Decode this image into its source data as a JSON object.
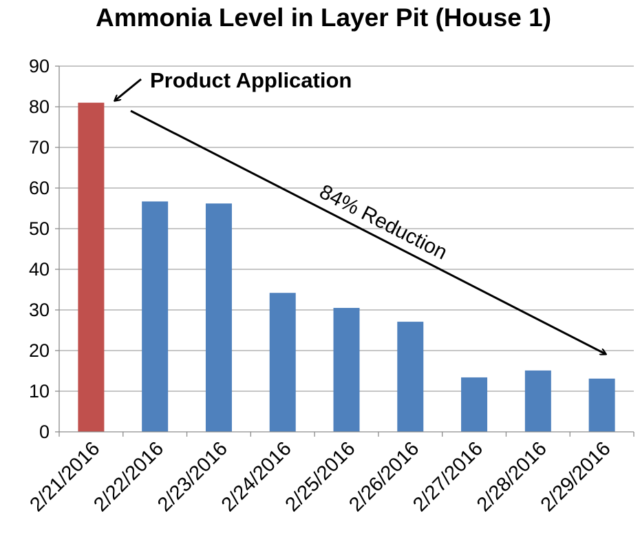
{
  "chart_data": {
    "type": "bar",
    "title": "Ammonia Level in Layer Pit (House 1)",
    "xlabel": "",
    "ylabel": "",
    "categories": [
      "2/21/2016",
      "2/22/2016",
      "2/23/2016",
      "2/24/2016",
      "2/25/2016",
      "2/26/2016",
      "2/27/2016",
      "2/28/2016",
      "2/29/2016"
    ],
    "values": [
      81,
      56.7,
      56.2,
      34.2,
      30.5,
      27.1,
      13.4,
      15.1,
      13.1
    ],
    "bar_colors": [
      "#c0504d",
      "#4f81bd",
      "#4f81bd",
      "#4f81bd",
      "#4f81bd",
      "#4f81bd",
      "#4f81bd",
      "#4f81bd",
      "#4f81bd"
    ],
    "ylim": [
      0,
      90
    ],
    "yticks": [
      "0",
      "10",
      "20",
      "30",
      "40",
      "50",
      "60",
      "70",
      "80",
      "90"
    ],
    "grid": true,
    "legend": "none",
    "annotations": {
      "application_label": "Product Application",
      "reduction_label": "84% Reduction"
    }
  }
}
